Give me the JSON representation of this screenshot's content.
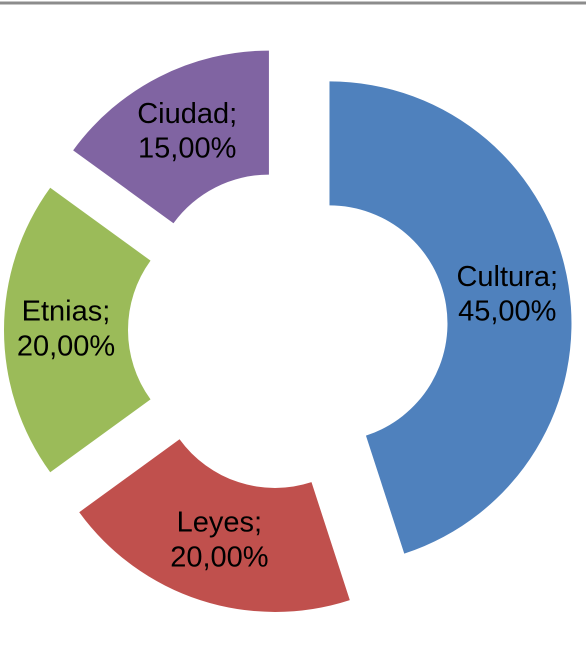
{
  "chart_data": {
    "type": "donut",
    "categories": [
      "Cultura",
      "Leyes",
      "Etnias",
      "Ciudad"
    ],
    "values": [
      45,
      20,
      20,
      15
    ],
    "value_labels": [
      "45,00%",
      "20,00%",
      "20,00%",
      "15,00%"
    ],
    "label_separator": ";",
    "colors": [
      "#4f81bd",
      "#c0504d",
      "#9bbb59",
      "#8064a2"
    ],
    "exploded": true
  }
}
